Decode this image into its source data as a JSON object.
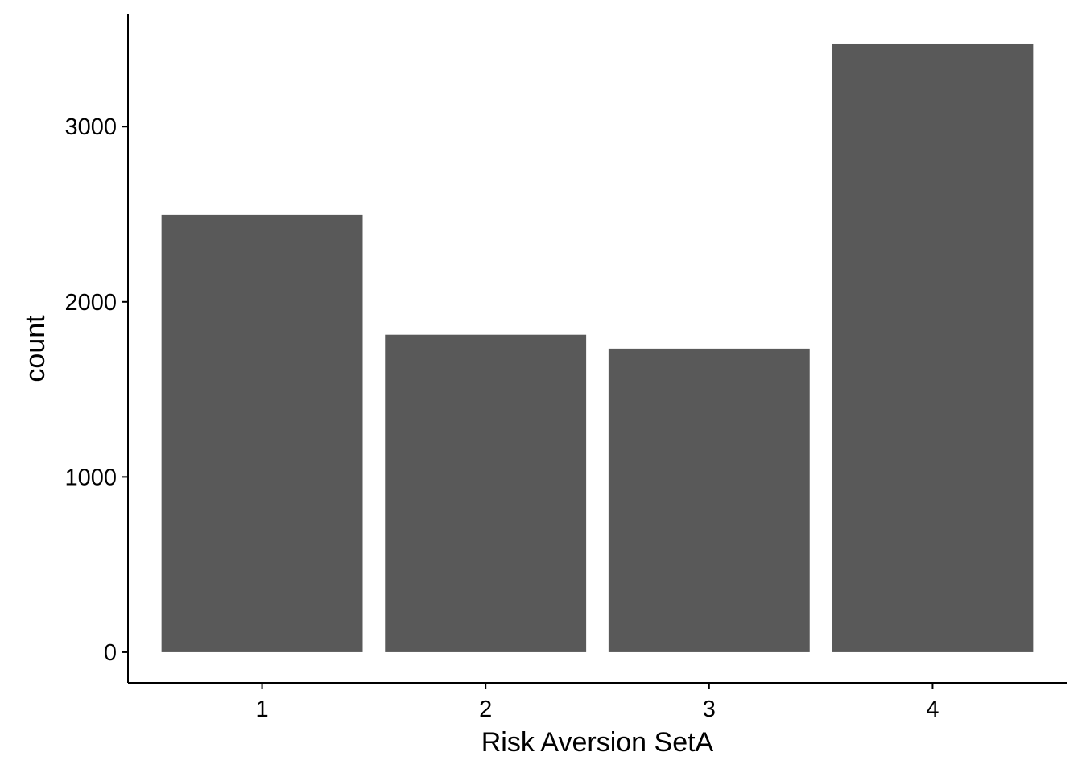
{
  "chart_data": {
    "type": "bar",
    "categories": [
      "1",
      "2",
      "3",
      "4"
    ],
    "values": [
      2496,
      1812,
      1733,
      3470
    ],
    "title": "",
    "xlabel": "Risk Aversion SetA",
    "ylabel": "count",
    "ylim": [
      -175,
      3640
    ],
    "yticks": [
      0,
      1000,
      2000,
      3000
    ],
    "ytick_labels": [
      "0",
      "1000",
      "2000",
      "3000"
    ],
    "grid": false,
    "legend": "none",
    "colors": {
      "bar": "#595959",
      "axis": "#000000",
      "background": "#ffffff"
    }
  }
}
